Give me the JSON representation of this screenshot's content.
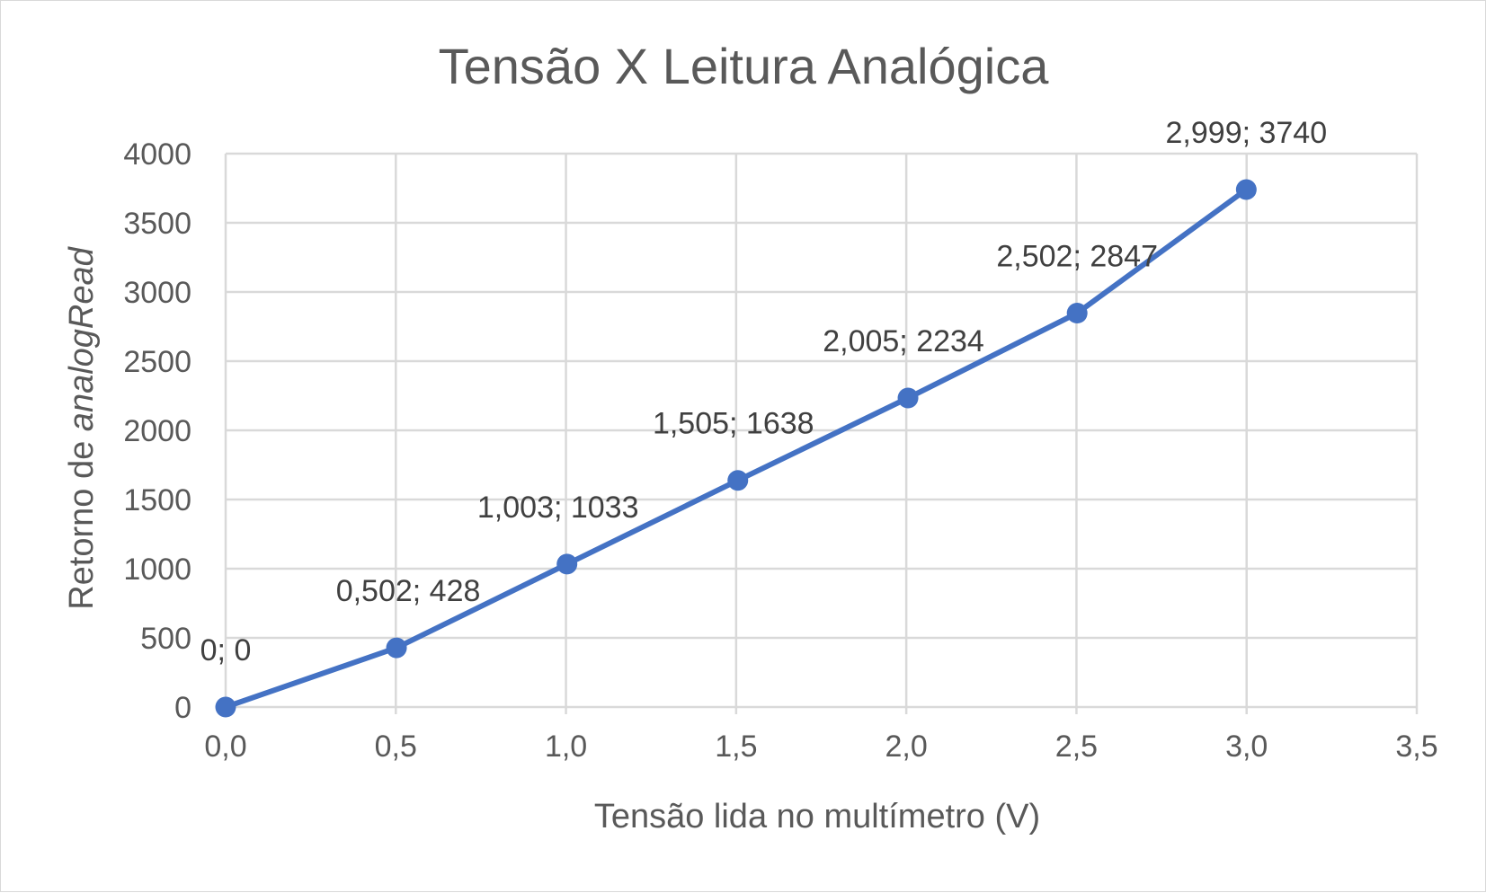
{
  "chart_data": {
    "type": "scatter",
    "title": "Tensão X Leitura Analógica",
    "xlabel": "Tensão lida no multímetro (V)",
    "ylabel_prefix": "Retorno de ",
    "ylabel_italic": "analogRead",
    "xlim": [
      0,
      3.5
    ],
    "ylim": [
      0,
      4000
    ],
    "x_ticks": [
      "0,0",
      "0,5",
      "1,0",
      "1,5",
      "2,0",
      "2,5",
      "3,0",
      "3,5"
    ],
    "y_ticks": [
      "0",
      "500",
      "1000",
      "1500",
      "2000",
      "2500",
      "3000",
      "3500",
      "4000"
    ],
    "grid": true,
    "line_color": "#4472C4",
    "series": [
      {
        "points": [
          {
            "x": 0,
            "y": 0,
            "label": "0; 0"
          },
          {
            "x": 0.502,
            "y": 428,
            "label": "0,502; 428"
          },
          {
            "x": 1.003,
            "y": 1033,
            "label": "1,003; 1033"
          },
          {
            "x": 1.505,
            "y": 1638,
            "label": "1,505; 1638"
          },
          {
            "x": 2.005,
            "y": 2234,
            "label": "2,005; 2234"
          },
          {
            "x": 2.502,
            "y": 2847,
            "label": "2,502; 2847"
          },
          {
            "x": 2.999,
            "y": 3740,
            "label": "2,999; 3740"
          }
        ]
      }
    ]
  }
}
